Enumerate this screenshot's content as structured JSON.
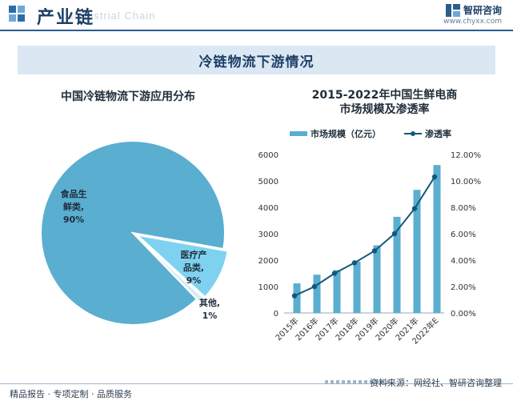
{
  "header": {
    "title": "产业链",
    "subtitle": "Industrial Chain",
    "brand_name": "智研咨询",
    "brand_url": "www.chyxx.com"
  },
  "banner": {
    "title": "冷链物流下游情况"
  },
  "footer": {
    "left": "精品报告 · 专项定制 · 品质服务",
    "right": "资料来源：网经社、智研咨询整理"
  },
  "colors": {
    "bar": "#5aaed0",
    "line": "#15577a",
    "slice_light": "#7fd2ef",
    "pie_main": "#5aaed0"
  },
  "chart_data": [
    {
      "type": "pie",
      "title": "中国冷链物流下游应用分布",
      "slices": [
        {
          "label_lines": [
            "食品生",
            "鲜类,"
          ],
          "value": 90,
          "pct": "90%"
        },
        {
          "label_lines": [
            "医疗产",
            "品类,"
          ],
          "value": 9,
          "pct": "9%"
        },
        {
          "label_lines": [
            "其他,"
          ],
          "value": 1,
          "pct": "1%"
        }
      ]
    },
    {
      "type": "bar+line",
      "title_lines": [
        "2015-2022年中国生鲜电商",
        "市场规模及渗透率"
      ],
      "categories": [
        "2015年",
        "2016年",
        "2017年",
        "2018年",
        "2019年",
        "2020年",
        "2021年",
        "2022年E"
      ],
      "series": [
        {
          "name": "市场规模（亿元）",
          "kind": "bar",
          "axis": "left",
          "values": [
            1120,
            1450,
            1620,
            1950,
            2560,
            3640,
            4660,
            5600
          ]
        },
        {
          "name": "渗透率",
          "kind": "line",
          "axis": "right",
          "values": [
            1.3,
            2.0,
            3.0,
            3.8,
            4.7,
            6.0,
            7.9,
            10.3
          ]
        }
      ],
      "y_left": {
        "min": 0,
        "max": 6000,
        "ticks": [
          "0",
          "1000",
          "2000",
          "3000",
          "4000",
          "5000",
          "6000"
        ]
      },
      "y_right": {
        "min": 0,
        "max": 12,
        "ticks": [
          "0.00%",
          "2.00%",
          "4.00%",
          "6.00%",
          "8.00%",
          "10.00%",
          "12.00%"
        ]
      }
    }
  ]
}
